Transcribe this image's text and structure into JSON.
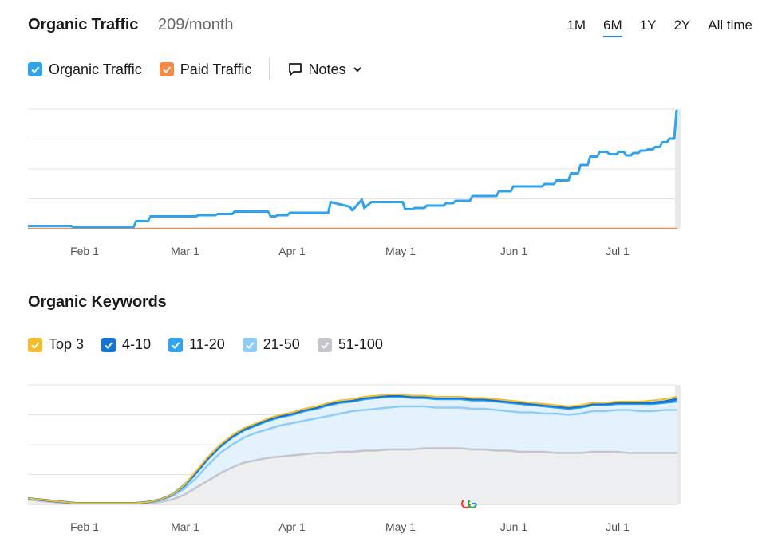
{
  "header": {
    "title": "Organic Traffic",
    "subtitle": "209/month",
    "ranges": [
      {
        "label": "1M",
        "active": false
      },
      {
        "label": "6M",
        "active": true
      },
      {
        "label": "1Y",
        "active": false
      },
      {
        "label": "2Y",
        "active": false
      },
      {
        "label": "All time",
        "active": false
      }
    ]
  },
  "traffic_legend": {
    "items": [
      {
        "label": "Organic Traffic",
        "color": "#2fa3ed",
        "checked": true
      },
      {
        "label": "Paid Traffic",
        "color": "#f58a44",
        "checked": true
      }
    ],
    "notes_label": "Notes"
  },
  "keywords": {
    "title": "Organic Keywords",
    "legend": [
      {
        "label": "Top 3",
        "color": "#f5bd2e"
      },
      {
        "label": "4-10",
        "color": "#1274d6"
      },
      {
        "label": "11-20",
        "color": "#2ea5ee"
      },
      {
        "label": "21-50",
        "color": "#8fcdf7"
      },
      {
        "label": "51-100",
        "color": "#c4c6cc"
      }
    ]
  },
  "chart_data": [
    {
      "type": "line",
      "title": "Organic Traffic",
      "x_tick_labels": [
        "Feb 1",
        "Mar 1",
        "Apr 1",
        "May 1",
        "Jun 1",
        "Jul 1"
      ],
      "grid": true,
      "series": [
        {
          "name": "Organic Traffic",
          "color": "#2fa3ed",
          "x": [
            0,
            18,
            19,
            44,
            45,
            50,
            51,
            70,
            71,
            78,
            79,
            85,
            86,
            100,
            101,
            103,
            104,
            108,
            109,
            125,
            126,
            134,
            135,
            139,
            140,
            143,
            144,
            156,
            157,
            160,
            161,
            165,
            166,
            173,
            174,
            177,
            178,
            184,
            185,
            195,
            196,
            201,
            202,
            214,
            215,
            219,
            220,
            225,
            226,
            229,
            230,
            233,
            234,
            237,
            238,
            241,
            242,
            245,
            246,
            248,
            249,
            251,
            252,
            254,
            255,
            257,
            258,
            260,
            261,
            263,
            264,
            266,
            267,
            269,
            270
          ],
          "values": [
            2,
            2,
            1,
            1,
            6,
            6,
            10,
            10,
            11,
            11,
            12,
            12,
            14,
            14,
            10,
            10,
            11,
            11,
            13,
            13,
            22,
            18,
            15,
            24,
            17,
            22,
            22,
            22,
            16,
            16,
            17,
            17,
            19,
            19,
            21,
            21,
            23,
            23,
            27,
            27,
            31,
            31,
            35,
            35,
            37,
            37,
            40,
            40,
            46,
            46,
            53,
            53,
            60,
            60,
            64,
            64,
            62,
            62,
            64,
            64,
            61,
            61,
            63,
            63,
            65,
            65,
            66,
            66,
            68,
            68,
            72,
            72,
            75,
            75,
            99
          ]
        },
        {
          "name": "Paid Traffic",
          "color": "#f58a44",
          "x": [
            0,
            270
          ],
          "values": [
            0,
            0
          ]
        }
      ]
    },
    {
      "type": "area",
      "title": "Organic Keywords",
      "x_tick_labels": [
        "Feb 1",
        "Mar 1",
        "Apr 1",
        "May 1",
        "Jun 1",
        "Jul 1"
      ],
      "grid": true,
      "x": [
        0,
        5,
        10,
        15,
        20,
        25,
        30,
        35,
        40,
        45,
        50,
        55,
        60,
        65,
        70,
        75,
        80,
        85,
        90,
        95,
        100,
        105,
        110,
        115,
        120,
        125,
        130,
        135,
        140,
        145,
        150,
        155,
        160,
        165,
        170,
        175,
        180,
        185,
        190,
        195,
        200,
        205,
        210,
        215,
        220,
        225,
        230,
        235,
        240,
        245,
        250,
        255,
        260,
        265,
        270
      ],
      "series": [
        {
          "name": "Top 3",
          "color": "#f5bd2e",
          "values": [
            5,
            4,
            3,
            2,
            1,
            1,
            1,
            1,
            1,
            1,
            2,
            4,
            8,
            16,
            28,
            40,
            50,
            58,
            64,
            68,
            72,
            75,
            77,
            80,
            82,
            85,
            87,
            88,
            90,
            91,
            92,
            92,
            91,
            91,
            90,
            90,
            90,
            89,
            89,
            88,
            87,
            86,
            85,
            84,
            83,
            82,
            83,
            85,
            85,
            86,
            86,
            86,
            87,
            88,
            90
          ]
        },
        {
          "name": "4-10",
          "color": "#1274d6",
          "values": [
            5,
            4,
            3,
            2,
            1,
            1,
            1,
            1,
            1,
            1,
            2,
            4,
            8,
            16,
            27,
            39,
            49,
            57,
            63,
            67,
            71,
            74,
            76,
            79,
            81,
            84,
            86,
            87,
            89,
            90,
            91,
            91,
            90,
            90,
            89,
            89,
            89,
            88,
            88,
            87,
            86,
            85,
            84,
            83,
            82,
            81,
            82,
            84,
            84,
            85,
            85,
            85,
            85,
            86,
            88
          ]
        },
        {
          "name": "11-20",
          "color": "#2ea5ee",
          "values": [
            5,
            4,
            3,
            2,
            1,
            1,
            1,
            1,
            1,
            1,
            2,
            4,
            8,
            15,
            26,
            38,
            48,
            56,
            62,
            66,
            70,
            73,
            75,
            78,
            80,
            83,
            85,
            86,
            88,
            89,
            90,
            90,
            89,
            89,
            88,
            88,
            88,
            87,
            87,
            86,
            85,
            84,
            83,
            82,
            81,
            80,
            81,
            83,
            83,
            84,
            84,
            84,
            84,
            85,
            86
          ]
        },
        {
          "name": "21-50",
          "color": "#8fcdf7",
          "values": [
            5,
            4,
            3,
            2,
            1,
            1,
            1,
            1,
            1,
            1,
            2,
            3,
            7,
            13,
            22,
            33,
            43,
            50,
            56,
            60,
            63,
            66,
            68,
            70,
            72,
            74,
            76,
            78,
            79,
            80,
            81,
            82,
            82,
            82,
            81,
            81,
            81,
            80,
            80,
            79,
            78,
            77,
            77,
            76,
            76,
            75,
            76,
            78,
            78,
            79,
            79,
            78,
            78,
            79,
            79
          ]
        },
        {
          "name": "51-100",
          "color": "#c4c6cc",
          "values": [
            4,
            3,
            2,
            1,
            1,
            1,
            1,
            1,
            1,
            1,
            1,
            2,
            4,
            8,
            14,
            20,
            26,
            31,
            35,
            37,
            39,
            40,
            41,
            42,
            43,
            43,
            44,
            44,
            45,
            45,
            46,
            46,
            46,
            47,
            47,
            47,
            47,
            46,
            46,
            45,
            45,
            44,
            44,
            44,
            43,
            43,
            43,
            44,
            44,
            44,
            43,
            43,
            43,
            43,
            43
          ]
        }
      ]
    }
  ]
}
